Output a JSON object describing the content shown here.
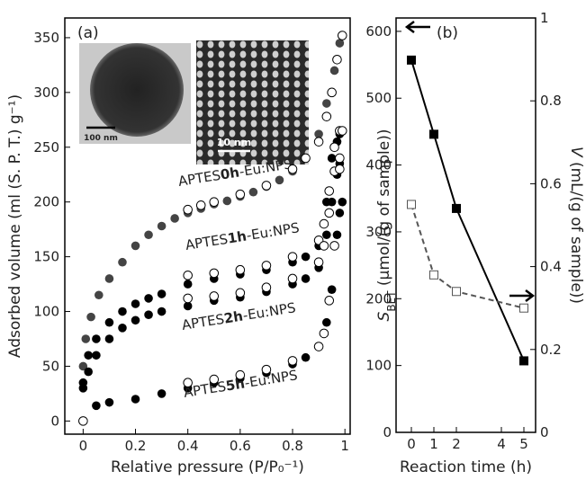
{
  "chart_data": [
    {
      "type": "scatter",
      "panel_label": "(a)",
      "xlabel": "Relative pressure (P/P₀⁻¹)",
      "ylabel": "Adsorbed volume (ml (S. P. T.) g⁻¹)",
      "xlim": [
        -0.07,
        1.02
      ],
      "ylim": [
        -12,
        368
      ],
      "xticks": [
        0,
        0.2,
        0.4,
        0.6,
        0.8,
        1
      ],
      "yticks": [
        0,
        50,
        100,
        150,
        200,
        250,
        300,
        350
      ],
      "insets": [
        "100 nm",
        "10 nm"
      ],
      "series": [
        {
          "label": [
            "APTES",
            "0h",
            "-Eu:NPS"
          ],
          "color": "#444444",
          "marker": "filled",
          "x": [
            0,
            0.01,
            0.03,
            0.06,
            0.1,
            0.15,
            0.2,
            0.25,
            0.3,
            0.35,
            0.4,
            0.45,
            0.5,
            0.55,
            0.6,
            0.65,
            0.7,
            0.75,
            0.8,
            0.85,
            0.9,
            0.93,
            0.96,
            0.98,
            0.99
          ],
          "y": [
            50,
            75,
            95,
            115,
            130,
            145,
            160,
            170,
            178,
            185,
            190,
            194,
            198,
            201,
            205,
            209,
            214,
            220,
            228,
            240,
            262,
            290,
            320,
            345,
            352
          ]
        },
        {
          "color": "#000000",
          "marker": "open",
          "x": [
            0.99,
            0.97,
            0.95,
            0.93,
            0.9,
            0.85,
            0.8,
            0.7,
            0.6,
            0.5,
            0.45,
            0.4
          ],
          "y": [
            352,
            330,
            300,
            278,
            255,
            240,
            230,
            215,
            207,
            200,
            197,
            193
          ]
        },
        {
          "label": [
            "APTES",
            "1h",
            "-Eu:NPS"
          ],
          "color": "#000000",
          "marker": "filled",
          "x": [
            0,
            0.02,
            0.05,
            0.1,
            0.15,
            0.2,
            0.25,
            0.3,
            0.4,
            0.5,
            0.6,
            0.7,
            0.8,
            0.85,
            0.9,
            0.93,
            0.95,
            0.97,
            0.98
          ],
          "y": [
            35,
            60,
            75,
            90,
            100,
            107,
            112,
            116,
            125,
            130,
            134,
            138,
            145,
            150,
            160,
            200,
            240,
            255,
            262
          ]
        },
        {
          "color": "#000000",
          "marker": "open",
          "x": [
            0.98,
            0.96,
            0.94,
            0.92,
            0.9,
            0.8,
            0.7,
            0.6,
            0.5,
            0.4
          ],
          "y": [
            265,
            250,
            210,
            180,
            165,
            150,
            142,
            138,
            135,
            133
          ]
        },
        {
          "label": [
            "APTES",
            "2h",
            "-Eu:NPS"
          ],
          "color": "#000000",
          "marker": "filled",
          "x": [
            0,
            0.02,
            0.05,
            0.1,
            0.15,
            0.2,
            0.25,
            0.3,
            0.4,
            0.5,
            0.6,
            0.7,
            0.8,
            0.85,
            0.9,
            0.93,
            0.95,
            0.97,
            0.98
          ],
          "y": [
            30,
            45,
            60,
            75,
            85,
            92,
            97,
            100,
            105,
            110,
            113,
            118,
            125,
            130,
            140,
            170,
            200,
            225,
            235
          ]
        },
        {
          "color": "#000000",
          "marker": "open",
          "x": [
            0.98,
            0.96,
            0.94,
            0.92,
            0.9,
            0.8,
            0.7,
            0.6,
            0.5,
            0.4
          ],
          "y": [
            240,
            228,
            190,
            160,
            145,
            130,
            122,
            117,
            114,
            112
          ]
        },
        {
          "label": [
            "APTES",
            "5h",
            "-Eu:NPS"
          ],
          "color": "#000000",
          "marker": "filled",
          "x": [
            0.05,
            0.1,
            0.2,
            0.3,
            0.4,
            0.5,
            0.6,
            0.7,
            0.8,
            0.85,
            0.9,
            0.93,
            0.95,
            0.97,
            0.98,
            0.99
          ],
          "y": [
            14,
            17,
            20,
            25,
            30,
            35,
            39,
            44,
            52,
            58,
            68,
            90,
            120,
            170,
            190,
            200
          ]
        },
        {
          "color": "#000000",
          "marker": "open",
          "x": [
            0,
            0.4,
            0.5,
            0.6,
            0.7,
            0.8,
            0.9,
            0.92,
            0.94,
            0.96,
            0.98,
            0.99
          ],
          "y": [
            0,
            35,
            38,
            42,
            47,
            55,
            68,
            80,
            110,
            160,
            230,
            265
          ]
        }
      ]
    },
    {
      "type": "line",
      "panel_label": "(b)",
      "xlabel": "Reaction time (h)",
      "ylabel": {
        "symbol": "S",
        "sub": "BET",
        "rest": " (µmol/(g of sample))"
      },
      "y2label": {
        "symbol": "V",
        "rest": " (mL/(g of sample))"
      },
      "xlim": [
        -0.68,
        5.52
      ],
      "ylim": [
        0,
        620
      ],
      "y2lim": [
        0,
        1
      ],
      "xticks": [
        0,
        1,
        2,
        4,
        5
      ],
      "yticks": [
        0,
        100,
        200,
        300,
        400,
        500,
        600
      ],
      "y2ticks": [
        0,
        0.2,
        0.4,
        0.6,
        0.8,
        1
      ],
      "x": [
        0,
        1,
        2,
        5
      ],
      "series": [
        {
          "color": "#000000",
          "marker": "filled",
          "dash": false,
          "values": [
            557,
            446,
            335,
            107
          ]
        },
        {
          "color": "#555555",
          "marker": "open",
          "dash": true,
          "axis": "y2",
          "values": [
            0.55,
            0.38,
            0.34,
            0.3
          ]
        }
      ]
    }
  ]
}
